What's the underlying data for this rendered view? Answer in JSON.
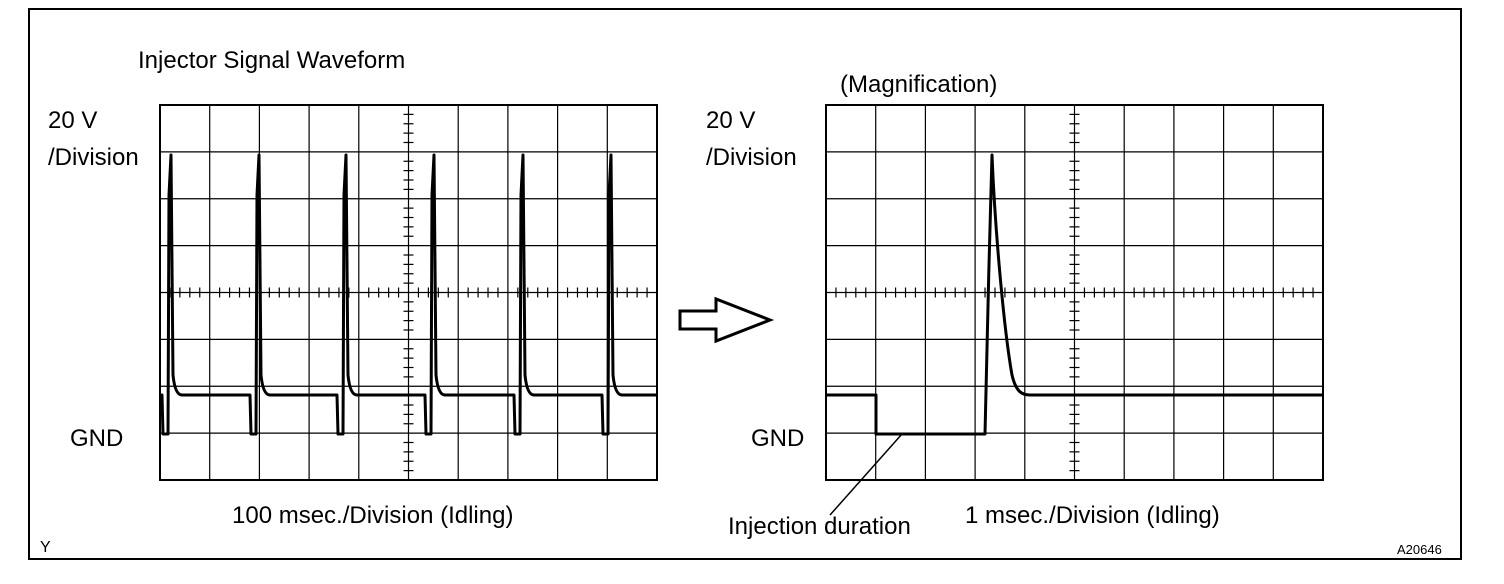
{
  "left_panel": {
    "title": "Injector Signal Waveform",
    "scale_line1": "20 V",
    "scale_line2": "/Division",
    "gnd_label": "GND",
    "time_label": "100 msec./Division (Idling)"
  },
  "right_panel": {
    "title": "(Magnification)",
    "scale_line1": "20 V",
    "scale_line2": "/Division",
    "gnd_label": "GND",
    "time_label": "1 msec./Division (Idling)",
    "annotation": "Injection duration"
  },
  "corner_left": "Y",
  "figure_id": "A20646",
  "colors": {
    "line": "#000000",
    "background": "#ffffff"
  },
  "icons": {
    "arrow": "right-arrow-icon"
  }
}
